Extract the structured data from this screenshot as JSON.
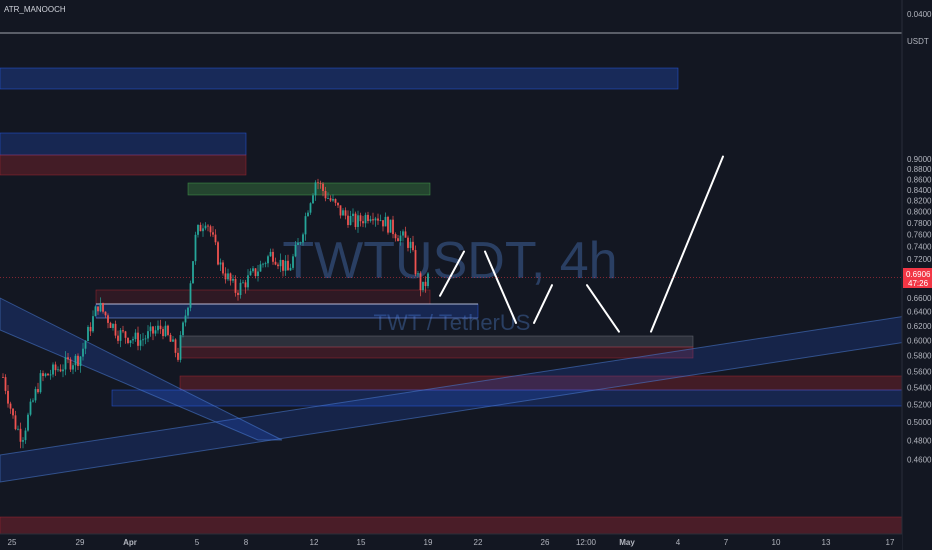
{
  "author": "ATR_MANOOCH",
  "watermark": {
    "symbol": "TWTUSDT, 4h",
    "description": "TWT / TetherUS"
  },
  "axis_unit": "USDT",
  "last_price": {
    "value": "0.6906",
    "countdown": "47:26"
  },
  "colors": {
    "background": "#131722",
    "up": "#26a69a",
    "down": "#ef5350",
    "projection": "#ffffff",
    "zone_blue": "#2962ff",
    "zone_red": "#b22833"
  },
  "chart_data": {
    "type": "candlestick",
    "y_axis": {
      "scale": "log",
      "ylim": [
        0.45,
        0.96
      ],
      "ticks": [
        "0.9000",
        "0.8800",
        "0.8600",
        "0.8400",
        "0.8200",
        "0.8000",
        "0.7800",
        "0.7600",
        "0.7400",
        "0.7200",
        "0.7000",
        "0.6600",
        "0.6400",
        "0.6200",
        "0.6000",
        "0.5800",
        "0.5600",
        "0.5400",
        "0.5200",
        "0.5000",
        "0.4800",
        "0.4600"
      ],
      "top_label": "0.0400"
    },
    "x_axis": {
      "ticks": [
        "25",
        "29",
        "Apr",
        "5",
        "8",
        "12",
        "15",
        "19",
        "22",
        "26",
        "12:00",
        "May",
        "4",
        "7",
        "10",
        "13",
        "17"
      ],
      "bold_ticks": [
        "Apr",
        "May"
      ]
    },
    "grid": false,
    "candles_summary": {
      "start_price": 0.553,
      "low": 0.483,
      "high": 0.87,
      "last": 0.6906
    },
    "projection_path": [
      0.663,
      0.732,
      0.624,
      0.679,
      0.612,
      0.905
    ]
  }
}
